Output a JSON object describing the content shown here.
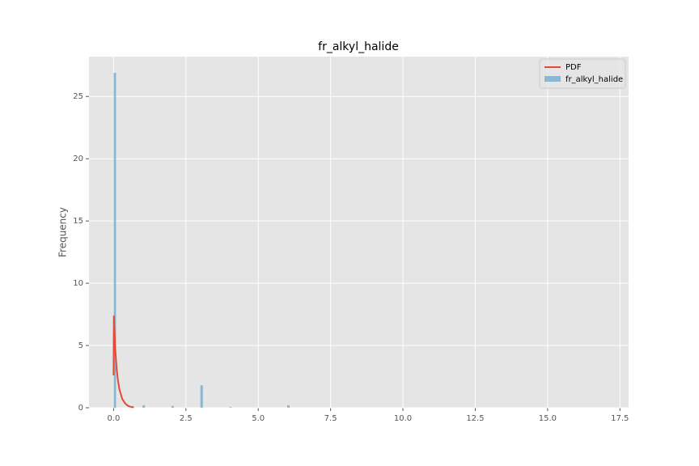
{
  "chart_data": {
    "type": "histogram",
    "title": "fr_alkyl_halide",
    "ylabel": "Frequency",
    "name": "fr_alkyl_halide",
    "color": "#348abd",
    "opacity": 0.5,
    "bins": [
      0,
      0.085,
      1,
      1.085,
      2,
      2.085,
      3,
      3.085,
      4,
      4.085,
      6,
      6.085,
      17
    ],
    "values": [
      26.9,
      0,
      0.2,
      0,
      0.15,
      0,
      1.8,
      0,
      0.05,
      0,
      0.2,
      0
    ],
    "overlay": {
      "type": "line",
      "name": "PDF",
      "color": "#e24a33",
      "x": [
        0,
        0.01,
        0.05,
        0.1,
        0.15,
        0.2,
        0.3,
        0.4,
        0.5,
        0.6,
        0.7
      ],
      "values": [
        2.6,
        7.4,
        5.0,
        3.3,
        2.2,
        1.5,
        0.7,
        0.35,
        0.15,
        0.07,
        0.03
      ]
    },
    "xlim": [
      -0.85,
      17.8
    ],
    "ylim": [
      0,
      28.2
    ],
    "xticks": [
      {
        "value": 0,
        "label": "0.0"
      },
      {
        "value": 2.5,
        "label": "2.5"
      },
      {
        "value": 5,
        "label": "5.0"
      },
      {
        "value": 7.5,
        "label": "7.5"
      },
      {
        "value": 10,
        "label": "10.0"
      },
      {
        "value": 12.5,
        "label": "12.5"
      },
      {
        "value": 15,
        "label": "15.0"
      },
      {
        "value": 17.5,
        "label": "17.5"
      }
    ],
    "yticks": [
      0,
      5,
      10,
      15,
      20,
      25
    ],
    "grid": true,
    "legend": "upper right"
  }
}
